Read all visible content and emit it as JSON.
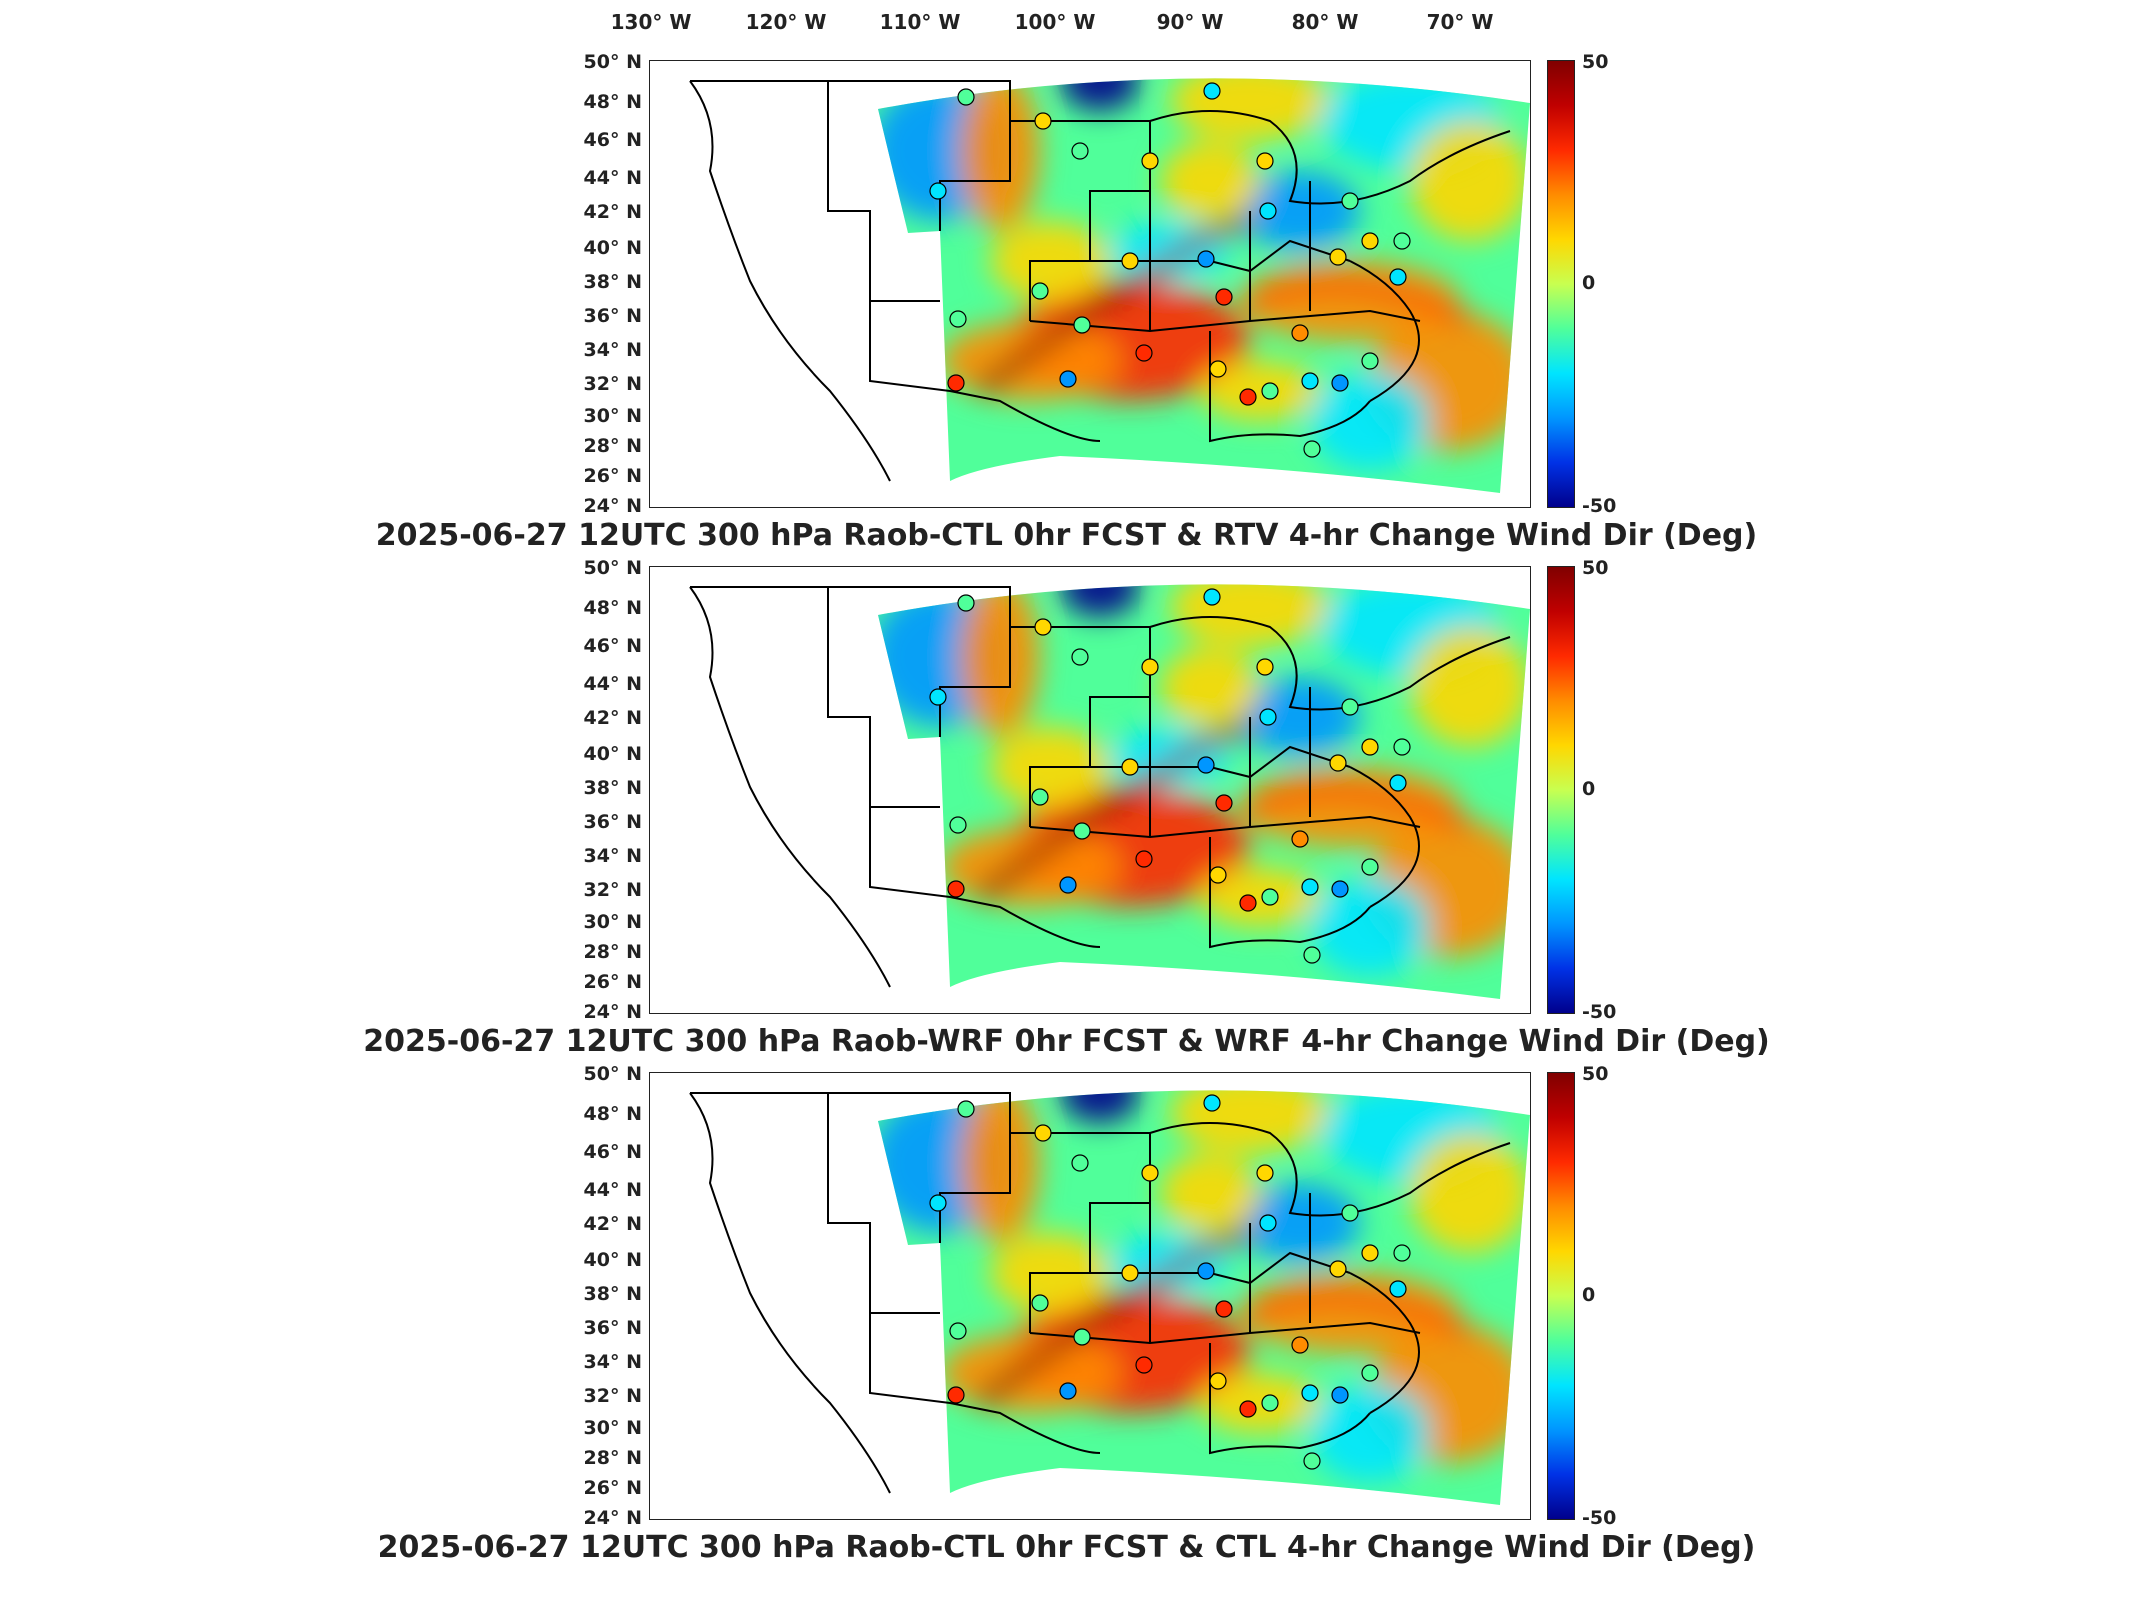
{
  "top_axis": {
    "lon_labels": [
      "130° W",
      "120° W",
      "110° W",
      "100° W",
      "90° W",
      "80° W",
      "70° W"
    ]
  },
  "lat_labels": [
    "50° N",
    "48° N",
    "46° N",
    "44° N",
    "42° N",
    "40° N",
    "38° N",
    "36° N",
    "34° N",
    "32° N",
    "30° N",
    "28° N",
    "26° N",
    "24° N"
  ],
  "colorbar": {
    "max_label": "50",
    "mid_label": "0",
    "min_label": "-50",
    "min": -50,
    "max": 50
  },
  "panels": [
    {
      "title": "2025-06-27 12UTC 300 hPa Raob-CTL 0hr FCST & RTV 4-hr Change Wind Dir (Deg)"
    },
    {
      "title": "2025-06-27 12UTC 300 hPa Raob-WRF 0hr FCST & WRF 4-hr Change Wind Dir (Deg)"
    },
    {
      "title": "2025-06-27 12UTC 300 hPa Raob-CTL 0hr FCST & CTL 4-hr Change Wind Dir (Deg)"
    }
  ],
  "colors": {
    "dark_red": "#800000",
    "red": "#ff2a00",
    "orange": "#ff8c00",
    "yellow": "#ffd700",
    "green": "#50ff9a",
    "cyan": "#00e5ff",
    "blue": "#0096ff",
    "dark_blue": "#00008c"
  }
}
